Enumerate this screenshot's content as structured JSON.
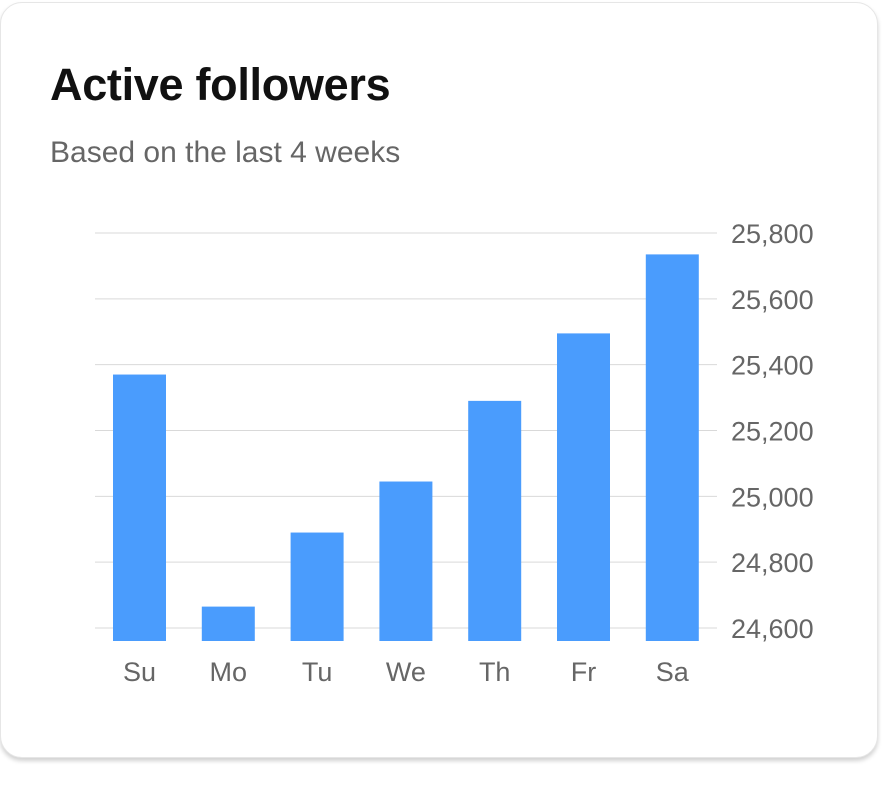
{
  "card": {
    "title": "Active followers",
    "subtitle": "Based on the last 4 weeks"
  },
  "chart_data": {
    "type": "bar",
    "title": "Active followers",
    "subtitle": "Based on the last 4 weeks",
    "categories": [
      "Su",
      "Mo",
      "Tu",
      "We",
      "Th",
      "Fr",
      "Sa"
    ],
    "values": [
      25370,
      24665,
      24890,
      25045,
      25290,
      25495,
      25735
    ],
    "ylim": [
      24560,
      25800
    ],
    "yticks": [
      24600,
      24800,
      25000,
      25200,
      25400,
      25600,
      25800
    ],
    "ytick_labels": [
      "24,600",
      "24,800",
      "25,000",
      "25,200",
      "25,400",
      "25,600",
      "25,800"
    ],
    "grid": true,
    "yaxis_side": "right",
    "bar_color": "#4a9cfd",
    "grid_color": "#d9d9d9"
  }
}
